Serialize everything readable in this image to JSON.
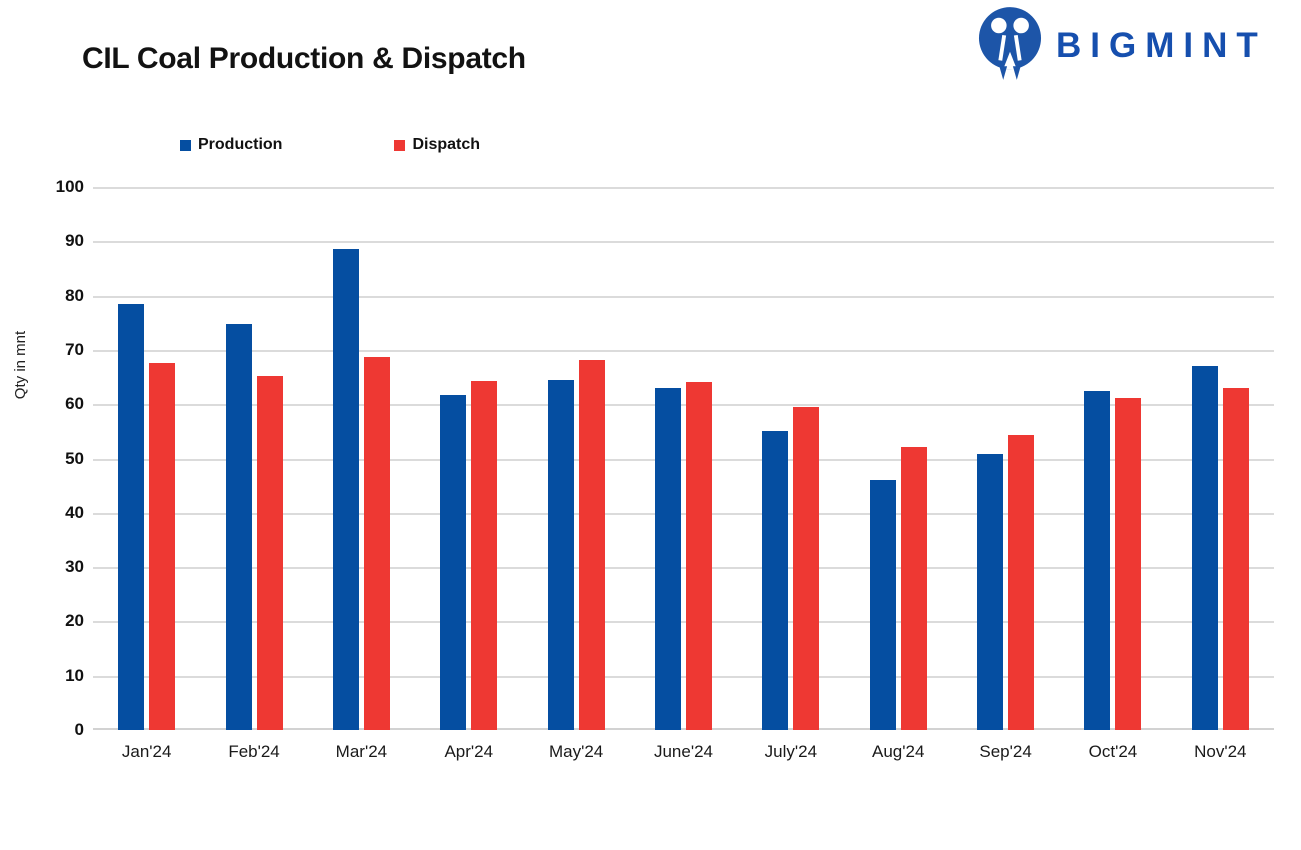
{
  "header": {
    "title": "CIL Coal Production & Dispatch"
  },
  "logo": {
    "text": "BIGMINT",
    "icon": "bigmint-twin-figures-icon",
    "text_color": "#164FAE",
    "icon_color": "#1D55A8"
  },
  "chart_data": {
    "type": "bar",
    "title": "CIL Coal Production & Dispatch",
    "ylabel": "Qty in mnt",
    "xlabel": "",
    "ylim": [
      0,
      100
    ],
    "ytick_step": 10,
    "grid": "horizontal",
    "legend_position": "top-left",
    "categories": [
      "Jan'24",
      "Feb'24",
      "Mar'24",
      "Apr'24",
      "May'24",
      "June'24",
      "July'24",
      "Aug'24",
      "Sep'24",
      "Oct'24",
      "Nov'24"
    ],
    "series": [
      {
        "name": "Production",
        "color": "#054EA1",
        "values": [
          78.5,
          74.8,
          88.6,
          61.7,
          64.4,
          63.0,
          55.0,
          46.1,
          50.8,
          62.4,
          67.1
        ]
      },
      {
        "name": "Dispatch",
        "color": "#EE3833",
        "values": [
          67.5,
          65.2,
          68.7,
          64.2,
          68.1,
          64.0,
          59.5,
          52.1,
          54.3,
          61.2,
          63.0
        ]
      }
    ]
  },
  "colors": {
    "gridline": "#DBDBDB",
    "axis_line": "#D2D2D2",
    "title_text": "#121212",
    "tick_text": "#111111"
  }
}
